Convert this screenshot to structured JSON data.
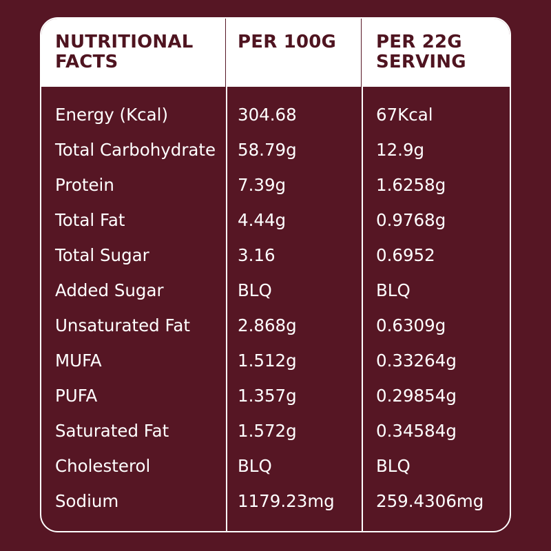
{
  "table": {
    "headers": [
      "NUTRITIONAL\nFACTS",
      "PER 100G",
      "PER 22G\nSERVING"
    ],
    "rows": [
      [
        "Energy (Kcal)",
        "304.68",
        "67Kcal"
      ],
      [
        "Total Carbohydrate",
        "58.79g",
        "12.9g"
      ],
      [
        "Protein",
        "7.39g",
        "1.6258g"
      ],
      [
        "Total Fat",
        "4.44g",
        "0.9768g"
      ],
      [
        "Total Sugar",
        "3.16",
        "0.6952"
      ],
      [
        "Added Sugar",
        "BLQ",
        "BLQ"
      ],
      [
        "Unsaturated Fat",
        "2.868g",
        "0.6309g"
      ],
      [
        "MUFA",
        "1.512g",
        "0.33264g"
      ],
      [
        "PUFA",
        "1.357g",
        "0.29854g"
      ],
      [
        "Saturated Fat",
        "1.572g",
        "0.34584g"
      ],
      [
        "Cholesterol",
        "BLQ",
        "BLQ"
      ],
      [
        "Sodium",
        "1179.23mg",
        "259.4306mg"
      ]
    ]
  },
  "colors": {
    "background": "#561624",
    "header_background": "#ffffff",
    "header_text": "#4f1420",
    "body_text": "#ffffff"
  }
}
